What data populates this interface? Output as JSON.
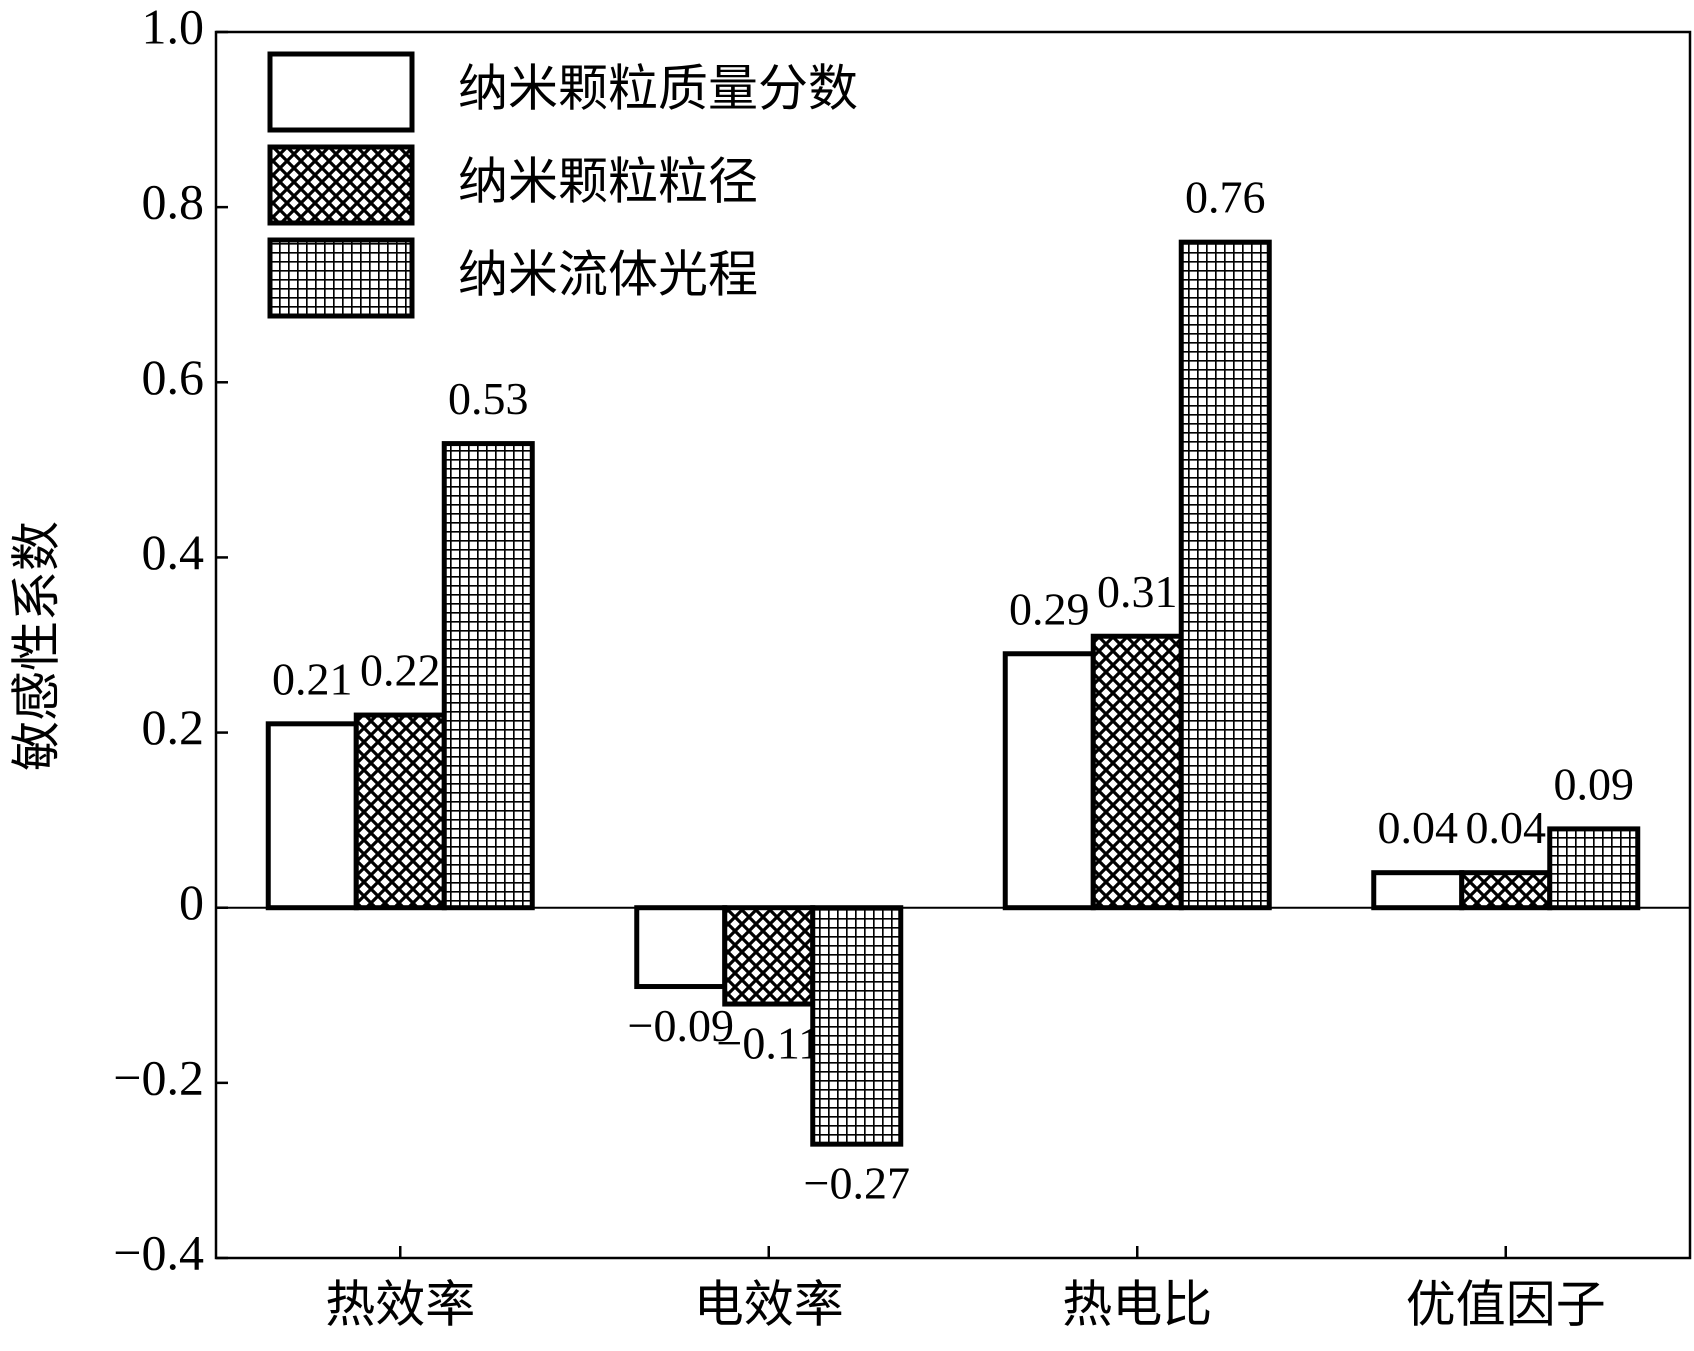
{
  "chart_data": {
    "type": "bar",
    "y_label": "敏感性系数",
    "categories": [
      "热效率",
      "电效率",
      "热电比",
      "优值因子"
    ],
    "series": [
      {
        "name": "纳米颗粒质量分数",
        "color": "#ffffff",
        "hatch": "none",
        "values": [
          0.21,
          -0.09,
          0.29,
          0.04
        ],
        "value_labels": [
          "0.21",
          "−0.09",
          "0.29",
          "0.04"
        ]
      },
      {
        "name": "纳米颗粒粒径",
        "color": "#000000",
        "hatch": "cross",
        "values": [
          0.22,
          -0.11,
          0.31,
          0.04
        ],
        "value_labels": [
          "0.22",
          "−0.11",
          "0.31",
          "0.04"
        ]
      },
      {
        "name": "纳米流体光程",
        "color": "#000000",
        "hatch": "grid",
        "values": [
          0.53,
          -0.27,
          0.76,
          0.09
        ],
        "value_labels": [
          "0.53",
          "−0.27",
          "0.76",
          "0.09"
        ]
      }
    ],
    "ylim": [
      -0.4,
      1.0
    ],
    "yticks": [
      {
        "value": -0.4,
        "label": "−0.4"
      },
      {
        "value": -0.2,
        "label": "−0.2"
      },
      0,
      0.2,
      0.4,
      0.6,
      0.8,
      {
        "value": 1.0,
        "label": "1.0"
      }
    ],
    "legend": "upper left",
    "grid": false
  }
}
